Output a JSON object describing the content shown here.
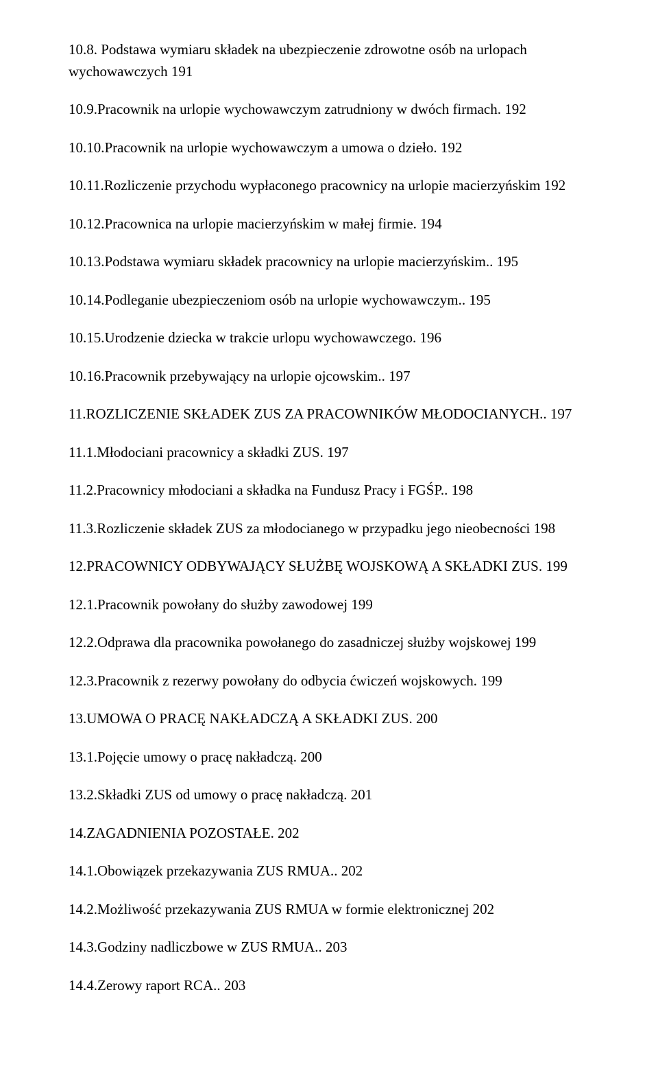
{
  "toc": [
    {
      "text": "10.8. Podstawa wymiaru składek na ubezpieczenie zdrowotne osób  na urlopach wychowawczych  191"
    },
    {
      "text": "10.9.Pracownik na urlopie wychowawczym zatrudniony w dwóch firmach. 192"
    },
    {
      "text": "10.10.Pracownik na urlopie wychowawczym a umowa o dzieło. 192"
    },
    {
      "text": "10.11.Rozliczenie przychodu wypłaconego pracownicy na urlopie   macierzyńskim   192"
    },
    {
      "text": "10.12.Pracownica na urlopie macierzyńskim w małej firmie. 194"
    },
    {
      "text": "10.13.Podstawa wymiaru składek pracownicy na urlopie macierzyńskim.. 195"
    },
    {
      "text": "10.14.Podleganie ubezpieczeniom osób na urlopie wychowawczym.. 195"
    },
    {
      "text": "10.15.Urodzenie dziecka w trakcie urlopu wychowawczego. 196"
    },
    {
      "text": "10.16.Pracownik przebywający na urlopie ojcowskim.. 197"
    },
    {
      "text": "11.ROZLICZENIE SKŁADEK ZUS ZA PRACOWNIKÓW MŁODOCIANYCH.. 197"
    },
    {
      "text": "11.1.Młodociani pracownicy a składki ZUS. 197"
    },
    {
      "text": "11.2.Pracownicy młodociani a składka na Fundusz Pracy i FGŚP.. 198"
    },
    {
      "text": "11.3.Rozliczenie składek ZUS za młodocianego w przypadku jego nieobecności 198"
    },
    {
      "text": "12.PRACOWNICY ODBYWAJĄCY SŁUŻBĘ WOJSKOWĄ A SKŁADKI ZUS. 199"
    },
    {
      "text": "12.1.Pracownik powołany do służby zawodowej 199"
    },
    {
      "text": "12.2.Odprawa dla pracownika powołanego do zasadniczej służby wojskowej 199"
    },
    {
      "text": "12.3.Pracownik z rezerwy powołany do odbycia ćwiczeń wojskowych. 199"
    },
    {
      "text": "13.UMOWA O PRACĘ NAKŁADCZĄ A SKŁADKI ZUS. 200"
    },
    {
      "text": "13.1.Pojęcie umowy o pracę nakładczą. 200"
    },
    {
      "text": "13.2.Składki ZUS od umowy o pracę nakładczą. 201"
    },
    {
      "text": "14.ZAGADNIENIA POZOSTAŁE. 202"
    },
    {
      "text": "14.1.Obowiązek przekazywania ZUS RMUA.. 202"
    },
    {
      "text": "14.2.Możliwość przekazywania ZUS RMUA w formie elektronicznej 202"
    },
    {
      "text": "14.3.Godziny nadliczbowe w ZUS RMUA.. 203"
    },
    {
      "text": "14.4.Zerowy raport RCA.. 203"
    }
  ]
}
